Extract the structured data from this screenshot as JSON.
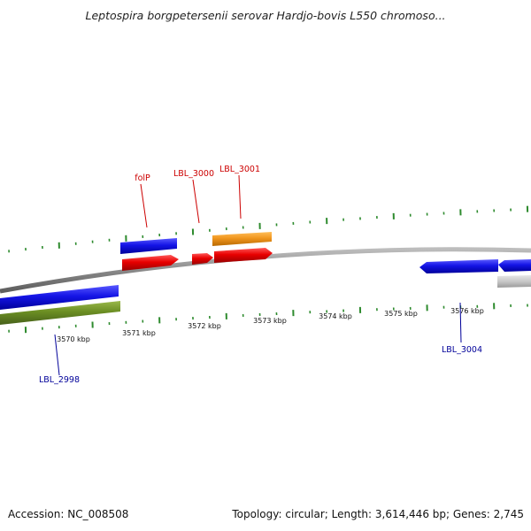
{
  "title": "Leptospira borgpetersenii serovar Hardjo-bovis L550 chromoso...",
  "footer": {
    "accession": "Accession: NC_008508",
    "summary": "Topology: circular; Length: 3,614,446 bp; Genes: 2,745"
  },
  "colors": {
    "backbone": "#8a8a8a",
    "tick": "#2e8b2e",
    "red": "#e00000",
    "blue": "#1a1ae6",
    "orange": "#f0961e",
    "green": "#6b8e23",
    "gray": "#c8c8c8",
    "label_red": "#cc0000",
    "label_blue": "#000099"
  },
  "scale_labels": [
    "3570 kbp",
    "3571 kbp",
    "3572 kbp",
    "3573 kbp",
    "3574 kbp",
    "3575 kbp",
    "3576 kbp"
  ],
  "gene_labels": [
    {
      "name": "folP",
      "strand": "forward"
    },
    {
      "name": "LBL_3000",
      "strand": "forward"
    },
    {
      "name": "LBL_3001",
      "strand": "forward"
    },
    {
      "name": "LBL_2998",
      "strand": "reverse"
    },
    {
      "name": "LBL_3004",
      "strand": "reverse"
    }
  ]
}
